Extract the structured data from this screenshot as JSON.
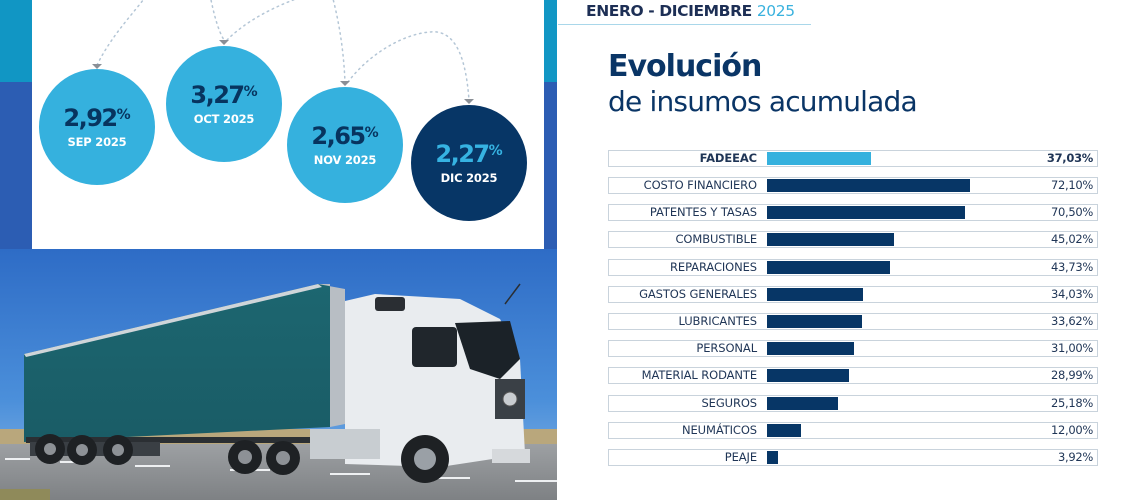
{
  "header": {
    "period": "ENERO - DICIEMBRE",
    "year": "2025",
    "title_main": "Evolución",
    "title_sub": "de insumos acumulada"
  },
  "monthly": [
    {
      "value": "2,92",
      "pct": "%",
      "label": "SEP 2025",
      "highlight": false
    },
    {
      "value": "3,27",
      "pct": "%",
      "label": "OCT 2025",
      "highlight": false
    },
    {
      "value": "2,65",
      "pct": "%",
      "label": "NOV 2025",
      "highlight": false
    },
    {
      "value": "2,27",
      "pct": "%",
      "label": "DIC 2025",
      "highlight": true
    }
  ],
  "colors": {
    "navy": "#073666",
    "light_blue": "#35b1de",
    "teal_band": "#1196c4",
    "text_dark": "#1f3556"
  },
  "chart_data": [
    {
      "type": "bar",
      "orientation": "horizontal",
      "title": "Evolución de insumos acumulada",
      "subtitle": "ENERO - DICIEMBRE 2025",
      "xlabel": "",
      "ylabel": "",
      "unit": "%",
      "categories": [
        "FADEEAC",
        "COSTO FINANCIERO",
        "PATENTES Y TASAS",
        "COMBUSTIBLE",
        "REPARACIONES",
        "GASTOS GENERALES",
        "LUBRICANTES",
        "PERSONAL",
        "MATERIAL RODANTE",
        "SEGUROS",
        "NEUMÁTICOS",
        "PEAJE"
      ],
      "values": [
        37.03,
        72.1,
        70.5,
        45.02,
        43.73,
        34.03,
        33.62,
        31.0,
        28.99,
        25.18,
        12.0,
        3.92
      ],
      "value_labels": [
        "37,03%",
        "72,10%",
        "70,50%",
        "45,02%",
        "43,73%",
        "34,03%",
        "33,62%",
        "31,00%",
        "28,99%",
        "25,18%",
        "12,00%",
        "3,92%"
      ],
      "highlighted_category": "FADEEAC",
      "grid": false,
      "legend": "none"
    },
    {
      "type": "bubble-sequence",
      "title": "Variación mensual",
      "categories": [
        "SEP 2025",
        "OCT 2025",
        "NOV 2025",
        "DIC 2025"
      ],
      "values": [
        2.92,
        3.27,
        2.65,
        2.27
      ],
      "unit": "%"
    }
  ]
}
